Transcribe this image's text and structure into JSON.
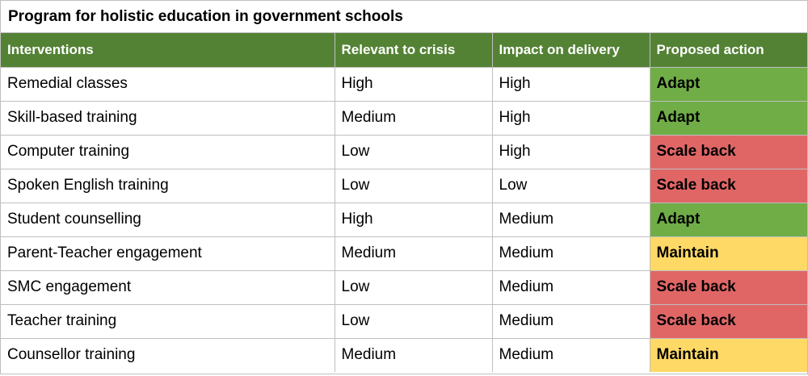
{
  "title": "Program for holistic education in government schools",
  "columns": [
    "Interventions",
    "Relevant to crisis",
    "Impact on delivery",
    "Proposed action"
  ],
  "action_colors": {
    "Adapt": "#70ad47",
    "Scale back": "#e06666",
    "Maintain": "#ffd966"
  },
  "rows": [
    {
      "intervention": "Remedial classes",
      "relevance": "High",
      "impact": "High",
      "action": "Adapt"
    },
    {
      "intervention": "Skill-based training",
      "relevance": "Medium",
      "impact": "High",
      "action": "Adapt"
    },
    {
      "intervention": "Computer training",
      "relevance": "Low",
      "impact": "High",
      "action": "Scale back"
    },
    {
      "intervention": "Spoken English training",
      "relevance": "Low",
      "impact": "Low",
      "action": "Scale back"
    },
    {
      "intervention": "Student counselling",
      "relevance": "High",
      "impact": "Medium",
      "action": "Adapt"
    },
    {
      "intervention": "Parent-Teacher engagement",
      "relevance": "Medium",
      "impact": "Medium",
      "action": "Maintain"
    },
    {
      "intervention": "SMC engagement",
      "relevance": "Low",
      "impact": "Medium",
      "action": "Scale back"
    },
    {
      "intervention": "Teacher training",
      "relevance": "Low",
      "impact": "Medium",
      "action": "Scale back"
    },
    {
      "intervention": "Counsellor training",
      "relevance": "Medium",
      "impact": "Medium",
      "action": "Maintain"
    }
  ]
}
